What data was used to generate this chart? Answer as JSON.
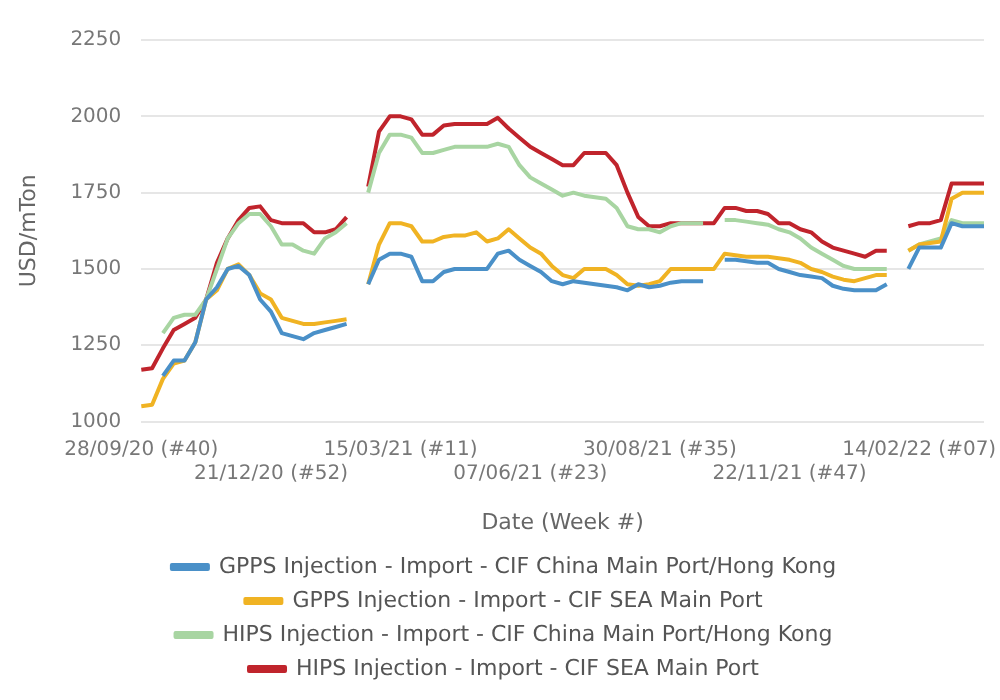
{
  "chart_data": {
    "type": "line",
    "xlabel": "Date (Week #)",
    "ylabel": "USD/mTon",
    "categories": [
      "28/09/20 (#40)",
      null,
      null,
      null,
      null,
      null,
      null,
      null,
      null,
      null,
      null,
      null,
      "21/12/20 (#52)",
      null,
      null,
      null,
      null,
      null,
      null,
      null,
      null,
      null,
      null,
      null,
      "15/03/21 (#11)",
      null,
      null,
      null,
      null,
      null,
      null,
      null,
      null,
      null,
      null,
      null,
      "07/06/21 (#23)",
      null,
      null,
      null,
      null,
      null,
      null,
      null,
      null,
      null,
      null,
      null,
      "30/08/21 (#35)",
      null,
      null,
      null,
      null,
      null,
      null,
      null,
      null,
      null,
      null,
      null,
      "22/11/21 (#47)",
      null,
      null,
      null,
      null,
      null,
      null,
      null,
      null,
      null,
      null,
      null,
      "14/02/22 (#07)",
      null,
      null,
      null,
      null,
      null,
      null
    ],
    "series": [
      {
        "name": "GPPS Injection - Import - CIF China Main Port/Hong Kong",
        "color": "#4a90c8",
        "values": [
          null,
          null,
          1150,
          1200,
          1200,
          1260,
          1400,
          1440,
          1500,
          1510,
          1480,
          1400,
          1360,
          1290,
          1280,
          1270,
          1290,
          1300,
          1310,
          1320,
          null,
          1450,
          1530,
          1550,
          1550,
          1540,
          1460,
          1460,
          1490,
          1500,
          1500,
          1500,
          1500,
          1550,
          1560,
          1530,
          1510,
          1490,
          1460,
          1450,
          1460,
          1455,
          1450,
          1445,
          1440,
          1430,
          1450,
          1440,
          1445,
          1455,
          1460,
          1460,
          1460,
          null,
          1530,
          1530,
          1525,
          1520,
          1520,
          1500,
          1490,
          1480,
          1475,
          1470,
          1445,
          1435,
          1430,
          1430,
          1430,
          1450,
          null,
          1500,
          1570,
          1570,
          1570,
          1650,
          1640,
          1640,
          1640
        ]
      },
      {
        "name": "GPPS Injection - Import - CIF SEA Main Port",
        "color": "#f0b323",
        "values": [
          1050,
          1055,
          1140,
          1190,
          1200,
          1260,
          1400,
          1430,
          1500,
          1515,
          1480,
          1420,
          1400,
          1340,
          1330,
          1320,
          1320,
          1325,
          1330,
          1335,
          null,
          1450,
          1580,
          1650,
          1650,
          1640,
          1590,
          1590,
          1605,
          1610,
          1610,
          1620,
          1590,
          1600,
          1630,
          1600,
          1570,
          1550,
          1510,
          1480,
          1470,
          1500,
          1500,
          1500,
          1480,
          1450,
          1445,
          1450,
          1460,
          1500,
          1500,
          1500,
          1500,
          1500,
          1550,
          1545,
          1540,
          1540,
          1540,
          1535,
          1530,
          1520,
          1500,
          1490,
          1475,
          1465,
          1460,
          1470,
          1480,
          1480,
          null,
          1560,
          1580,
          1585,
          1590,
          1730,
          1750,
          1750,
          1750
        ]
      },
      {
        "name": "HIPS Injection - Import - CIF China Main Port/Hong Kong",
        "color": "#a8d5a2",
        "values": [
          null,
          null,
          1290,
          1340,
          1350,
          1350,
          1400,
          1500,
          1600,
          1650,
          1680,
          1680,
          1640,
          1580,
          1580,
          1560,
          1550,
          1600,
          1620,
          1650,
          null,
          1750,
          1880,
          1940,
          1940,
          1930,
          1880,
          1880,
          1890,
          1900,
          1900,
          1900,
          1900,
          1910,
          1900,
          1840,
          1800,
          1780,
          1760,
          1740,
          1750,
          1740,
          1735,
          1730,
          1700,
          1640,
          1630,
          1630,
          1620,
          1640,
          1650,
          1650,
          1650,
          null,
          1660,
          1660,
          1655,
          1650,
          1645,
          1630,
          1620,
          1600,
          1570,
          1550,
          1530,
          1510,
          1500,
          1500,
          1500,
          1500,
          null,
          1560,
          1580,
          1590,
          1600,
          1660,
          1650,
          1650,
          1650
        ]
      },
      {
        "name": "HIPS Injection - Import - CIF SEA Main Port",
        "color": "#c0242c",
        "values": [
          1170,
          1175,
          1240,
          1300,
          1320,
          1340,
          1400,
          1520,
          1600,
          1660,
          1700,
          1705,
          1660,
          1650,
          1650,
          1650,
          1620,
          1620,
          1630,
          1670,
          null,
          1770,
          1950,
          2000,
          2000,
          1990,
          1940,
          1940,
          1970,
          1975,
          1975,
          1975,
          1975,
          1995,
          1960,
          1930,
          1900,
          1880,
          1860,
          1840,
          1840,
          1880,
          1880,
          1880,
          1840,
          1750,
          1670,
          1640,
          1640,
          1650,
          1650,
          1650,
          1650,
          1650,
          1700,
          1700,
          1690,
          1690,
          1680,
          1650,
          1650,
          1630,
          1620,
          1590,
          1570,
          1560,
          1550,
          1540,
          1560,
          1560,
          null,
          1640,
          1650,
          1650,
          1660,
          1780,
          1780,
          1780,
          1780
        ]
      }
    ],
    "ylim": [
      1000,
      2250
    ],
    "yticks": [
      1000,
      1250,
      1500,
      1750,
      2000,
      2250
    ],
    "grid": "y",
    "legend": "bottom"
  }
}
